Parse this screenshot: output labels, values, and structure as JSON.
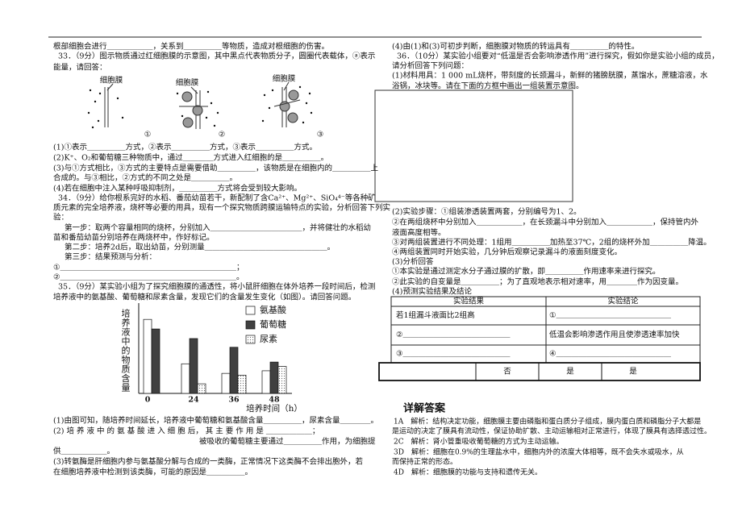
{
  "left": {
    "lines": [
      "根部细胞会进行＿＿＿＿＿＿，关系到＿＿＿＿＿等物质，造成对根细胞的伤害。",
      "33．（9分）图示物质通过红细胞膜的示意图，其中黑点代表物质分子，圆圈代表载体，ⓐ表示",
      "能量，请回答：",
      "(1)①表示＿＿＿＿＿方式，②表示＿＿＿＿＿方式，③表示＿＿＿＿＿方式。",
      "(2)K⁺、O₂和葡萄糖三种物质中，通过＿＿＿＿方式进入红细胞的是＿＿＿＿＿。",
      "(3)与①方式相比，③方式的主要特点是需要借助＿＿＿＿＿，该物质是在细胞内的＿＿＿＿＿上",
      "合成的。与③相比，②方式的不同之处是＿＿＿＿＿。",
      "(4)若在细胞中注入某种呼吸抑制剂，＿＿＿＿＿方式将会受到较大影响。",
      "34．（9分）给你根系完好的水稻、番茄幼苗若干，新配制了含Ca²⁺、Mg²⁺、SiO₄⁴⁻等各种矿",
      "质元素的完全培养液，烧杯等必要的用具，现有一个探究物质跨膜运输特点的实验，分析回答下列实",
      "验：",
      "第一步：取两个容量相同的烧杯，分别加入＿＿＿＿＿＿＿＿＿＿＿＿，并将健壮的水稻幼",
      "苗和番茄幼苗分别培养在两烧杯中，作好标记。",
      "第二步：培养2d后，取出幼苗，分别测量＿＿＿＿＿＿＿＿＿＿＿＿＿＿＿＿。",
      "第三步：结果预测与分析：",
      "①＿＿＿＿＿＿＿＿＿＿＿＿＿＿＿＿＿＿＿＿＿＿＿；",
      "②＿＿＿＿＿＿＿＿＿＿＿＿＿＿＿＿＿＿＿＿＿＿＿。",
      "35．（9分）某实验小组为了探究细胞膜的通透性，将小鼠肝细胞在体外培养一段时间后，检测",
      "培养液中的氨基酸、葡萄糖和尿素含量，发现它们的含量发生变化（如图）。请回答问题。",
      "(1)由图可知，随培养时间延长，培养液中葡萄糖和氨基酸含量＿＿＿＿＿，尿素含量＿＿＿＿。",
      "(2) 培 养 液 中 的 氨 基 酸 进 入 细 胞 后， 其 主 要 作 用 是 ＿＿＿＿＿＿；",
      "被吸收的葡萄糖主要通过＿＿＿＿＿作用，为细胞提",
      "供＿＿＿＿＿＿。",
      "(3)转氨酶是肝细胞内参与氨基酸分解与合成的一类酶，正常情况下这类酶不会排出胞外，若",
      "在细胞培养液中检测到该类酶，可能的原因是＿＿＿＿＿。"
    ],
    "figure_labels": [
      "细胞膜",
      "细胞膜",
      "细胞膜",
      "①",
      "②",
      "③"
    ]
  },
  "chart_data": {
    "type": "bar",
    "y_label": "培养液中的物质含量",
    "x_label": "培养时间（h）",
    "categories": [
      "0",
      "24",
      "36",
      "48"
    ],
    "series": [
      {
        "name": "氨基酸",
        "color": "#ffffff",
        "values": [
          8.5,
          3.4,
          2.3,
          2.6
        ]
      },
      {
        "name": "葡萄糖",
        "color": "#404040",
        "values": [
          7.4,
          6.3,
          5.3,
          3.6
        ]
      },
      {
        "name": "尿素",
        "color": "#666666",
        "values": [
          0,
          1.1,
          2.1,
          3.1
        ]
      }
    ],
    "ylim": [
      0,
      10
    ]
  },
  "right": {
    "lines": [
      "(4)由(1)和(3)可初步判断，细胞膜对物质的转运具有＿＿＿＿＿的特性。",
      "36．（10分）某实验小组要对“低温是否会影响渗透作用”进行探究，假如你是实验小组的成员，",
      "请分析回答下列问题：",
      "(1)材料用具：1 000 mL烧杯，带刻度的长颈漏斗，新鲜的猪膀胱膜，蒸馏水，蔗糖溶液，水",
      "浴锅，冰块等。请在下面的方框中画出一组装置示意图。",
      "(2)实验步骤：①组装渗透装置两套，分别编号为1、2。",
      "②在两组烧杯中分别加入＿＿＿＿＿＿，在长颈漏斗中分别加入＿＿＿＿＿＿，保持管内外",
      "液面高度相等。",
      "③对两组装置进行不同处理：1组用＿＿＿＿＿加热至37℃，2组的烧杯外加＿＿＿＿＿降温。",
      "④两组装置同时开始实验，几分钟后观察记录漏斗的液面刻度变化。",
      "(3)分析回答",
      "①本实验是通过测定水分子通过膜的扩散，即＿＿＿＿＿作用速率来进行探究。",
      "②此实验的自变量是＿＿＿＿＿；为了直观地表示相对速率，用＿＿＿＿作为因变量。",
      "(4)预测实验结果及结论"
    ]
  },
  "table": {
    "header": [
      "实验结果",
      "实验结论"
    ],
    "rows": [
      [
        "若1组漏斗液面比2组高",
        "①＿＿＿＿＿＿＿＿＿＿＿＿＿＿＿"
      ],
      [
        "②＿＿＿＿＿＿＿＿＿＿＿＿＿＿",
        "低温会影响渗透作用且使渗透速率加快"
      ],
      [
        "③＿＿＿＿＿＿＿＿＿＿＿＿＿＿",
        "④＿＿＿＿＿＿＿＿＿＿＿＿＿＿＿"
      ]
    ],
    "footer": [
      "否",
      "是",
      "是"
    ]
  },
  "answers": {
    "title": "详解答案",
    "lines": [
      "1A　解析：结构决定功能，细胞膜主要由磷脂和蛋白质分子组成，膜内蛋白质和磷脂分子大都是",
      "是运动的决定了膜具有流动性，保证协助扩散、主动运输相对正常进行，体现了膜具有选择透过性。",
      "2C　解析：肾小管重吸收葡萄糖的方式为主动运输。",
      "3D　解析：细胞在0.9%的生理盐水中，细胞内外的浓度大体相等，既不会失水或吸水，从",
      "而保持正常的形态。",
      "4D　解析：细胞膜的功能与支持和遗传无关。"
    ]
  }
}
